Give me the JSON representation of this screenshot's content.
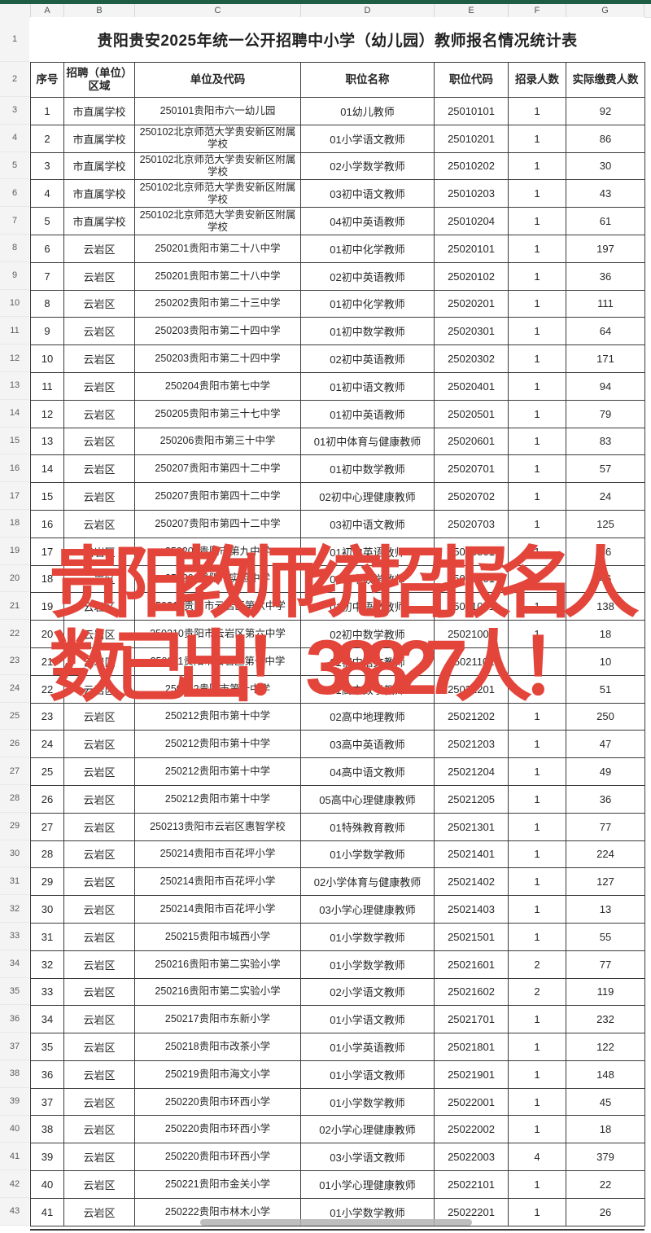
{
  "sheet": {
    "column_letters": [
      "A",
      "B",
      "C",
      "D",
      "E",
      "F",
      "G"
    ],
    "row_numbers": [
      1,
      2,
      3,
      4,
      5,
      6,
      7,
      8,
      9,
      10,
      11,
      12,
      13,
      14,
      15,
      16,
      17,
      18,
      19,
      20,
      21,
      22,
      23,
      24,
      25,
      26,
      27,
      28,
      29,
      30,
      31,
      32,
      33,
      34,
      35,
      36,
      37,
      38,
      39,
      40,
      41,
      42,
      43
    ],
    "title": "贵阳贵安2025年统一公开招聘中小学（幼儿园）教师报名情况统计表",
    "headers": [
      "序号",
      "招聘（单位）区域",
      "单位及代码",
      "职位名称",
      "职位代码",
      "招录人数",
      "实际缴费人数"
    ],
    "rows": [
      [
        "1",
        "市直属学校",
        "250101贵阳市六一幼儿园",
        "01幼儿教师",
        "25010101",
        "1",
        "92"
      ],
      [
        "2",
        "市直属学校",
        "250102北京师范大学贵安新区附属学校",
        "01小学语文教师",
        "25010201",
        "1",
        "86"
      ],
      [
        "3",
        "市直属学校",
        "250102北京师范大学贵安新区附属学校",
        "02小学数学教师",
        "25010202",
        "1",
        "30"
      ],
      [
        "4",
        "市直属学校",
        "250102北京师范大学贵安新区附属学校",
        "03初中语文教师",
        "25010203",
        "1",
        "43"
      ],
      [
        "5",
        "市直属学校",
        "250102北京师范大学贵安新区附属学校",
        "04初中英语教师",
        "25010204",
        "1",
        "61"
      ],
      [
        "6",
        "云岩区",
        "250201贵阳市第二十八中学",
        "01初中化学教师",
        "25020101",
        "1",
        "197"
      ],
      [
        "7",
        "云岩区",
        "250201贵阳市第二十八中学",
        "02初中英语教师",
        "25020102",
        "1",
        "36"
      ],
      [
        "8",
        "云岩区",
        "250202贵阳市第二十三中学",
        "01初中化学教师",
        "25020201",
        "1",
        "111"
      ],
      [
        "9",
        "云岩区",
        "250203贵阳市第二十四中学",
        "01初中数学教师",
        "25020301",
        "1",
        "64"
      ],
      [
        "10",
        "云岩区",
        "250203贵阳市第二十四中学",
        "02初中英语教师",
        "25020302",
        "1",
        "171"
      ],
      [
        "11",
        "云岩区",
        "250204贵阳市第七中学",
        "01初中语文教师",
        "25020401",
        "1",
        "94"
      ],
      [
        "12",
        "云岩区",
        "250205贵阳市第三十七中学",
        "01初中英语教师",
        "25020501",
        "1",
        "79"
      ],
      [
        "13",
        "云岩区",
        "250206贵阳市第三十中学",
        "01初中体育与健康教师",
        "25020601",
        "1",
        "83"
      ],
      [
        "14",
        "云岩区",
        "250207贵阳市第四十二中学",
        "01初中数学教师",
        "25020701",
        "1",
        "57"
      ],
      [
        "15",
        "云岩区",
        "250207贵阳市第四十二中学",
        "02初中心理健康教师",
        "25020702",
        "1",
        "24"
      ],
      [
        "16",
        "云岩区",
        "250207贵阳市第四十二中学",
        "03初中语文教师",
        "25020703",
        "1",
        "125"
      ],
      [
        "17",
        "云岩区",
        "250208贵阳市第九中学",
        "01初中英语教师",
        "25020801",
        "1",
        "36"
      ],
      [
        "18",
        "云岩区",
        "250209贵阳市实验中学",
        "01初中数学教师",
        "25020901",
        "1",
        "46"
      ],
      [
        "19",
        "云岩区",
        "250210贵阳市云岩区第六中学",
        "01初中语文教师",
        "25021001",
        "1",
        "138"
      ],
      [
        "20",
        "云岩区",
        "250210贵阳市云岩区第六中学",
        "02初中数学教师",
        "25021002",
        "1",
        "18"
      ],
      [
        "21",
        "云岩区",
        "250211贵阳市云岩区第一中学",
        "01初中语文教师",
        "25021101",
        "1",
        "10"
      ],
      [
        "22",
        "云岩区",
        "250212贵阳市第十中学",
        "01高中数学教师",
        "25021201",
        "1",
        "51"
      ],
      [
        "23",
        "云岩区",
        "250212贵阳市第十中学",
        "02高中地理教师",
        "25021202",
        "1",
        "250"
      ],
      [
        "24",
        "云岩区",
        "250212贵阳市第十中学",
        "03高中英语教师",
        "25021203",
        "1",
        "47"
      ],
      [
        "25",
        "云岩区",
        "250212贵阳市第十中学",
        "04高中语文教师",
        "25021204",
        "1",
        "49"
      ],
      [
        "26",
        "云岩区",
        "250212贵阳市第十中学",
        "05高中心理健康教师",
        "25021205",
        "1",
        "36"
      ],
      [
        "27",
        "云岩区",
        "250213贵阳市云岩区惠智学校",
        "01特殊教育教师",
        "25021301",
        "1",
        "77"
      ],
      [
        "28",
        "云岩区",
        "250214贵阳市百花坪小学",
        "01小学数学教师",
        "25021401",
        "1",
        "224"
      ],
      [
        "29",
        "云岩区",
        "250214贵阳市百花坪小学",
        "02小学体育与健康教师",
        "25021402",
        "1",
        "127"
      ],
      [
        "30",
        "云岩区",
        "250214贵阳市百花坪小学",
        "03小学心理健康教师",
        "25021403",
        "1",
        "13"
      ],
      [
        "31",
        "云岩区",
        "250215贵阳市城西小学",
        "01小学数学教师",
        "25021501",
        "1",
        "55"
      ],
      [
        "32",
        "云岩区",
        "250216贵阳市第二实验小学",
        "01小学数学教师",
        "25021601",
        "2",
        "77"
      ],
      [
        "33",
        "云岩区",
        "250216贵阳市第二实验小学",
        "02小学语文教师",
        "25021602",
        "2",
        "119"
      ],
      [
        "34",
        "云岩区",
        "250217贵阳市东新小学",
        "01小学语文教师",
        "25021701",
        "1",
        "232"
      ],
      [
        "35",
        "云岩区",
        "250218贵阳市改茶小学",
        "01小学英语教师",
        "25021801",
        "1",
        "122"
      ],
      [
        "36",
        "云岩区",
        "250219贵阳市海文小学",
        "01小学语文教师",
        "25021901",
        "1",
        "148"
      ],
      [
        "37",
        "云岩区",
        "250220贵阳市环西小学",
        "01小学数学教师",
        "25022001",
        "1",
        "45"
      ],
      [
        "38",
        "云岩区",
        "250220贵阳市环西小学",
        "02小学心理健康教师",
        "25022002",
        "1",
        "18"
      ],
      [
        "39",
        "云岩区",
        "250220贵阳市环西小学",
        "03小学语文教师",
        "25022003",
        "4",
        "379"
      ],
      [
        "40",
        "云岩区",
        "250221贵阳市金关小学",
        "01小学心理健康教师",
        "25022101",
        "1",
        "22"
      ],
      [
        "41",
        "云岩区",
        "250222贵阳市林木小学",
        "01小学数学教师",
        "25022201",
        "1",
        "26"
      ]
    ]
  },
  "overlay": {
    "line1": "贵阳教师统招报名人",
    "line2": "数已出！38827人！",
    "color": "#e3453b"
  },
  "colors": {
    "top_bar_green": "#1e5c43",
    "header_bar_bg": "#f3f4f3",
    "table_border": "#3b3b3b",
    "cell_text": "#272727",
    "scrollbar": "#b3b3b3"
  }
}
